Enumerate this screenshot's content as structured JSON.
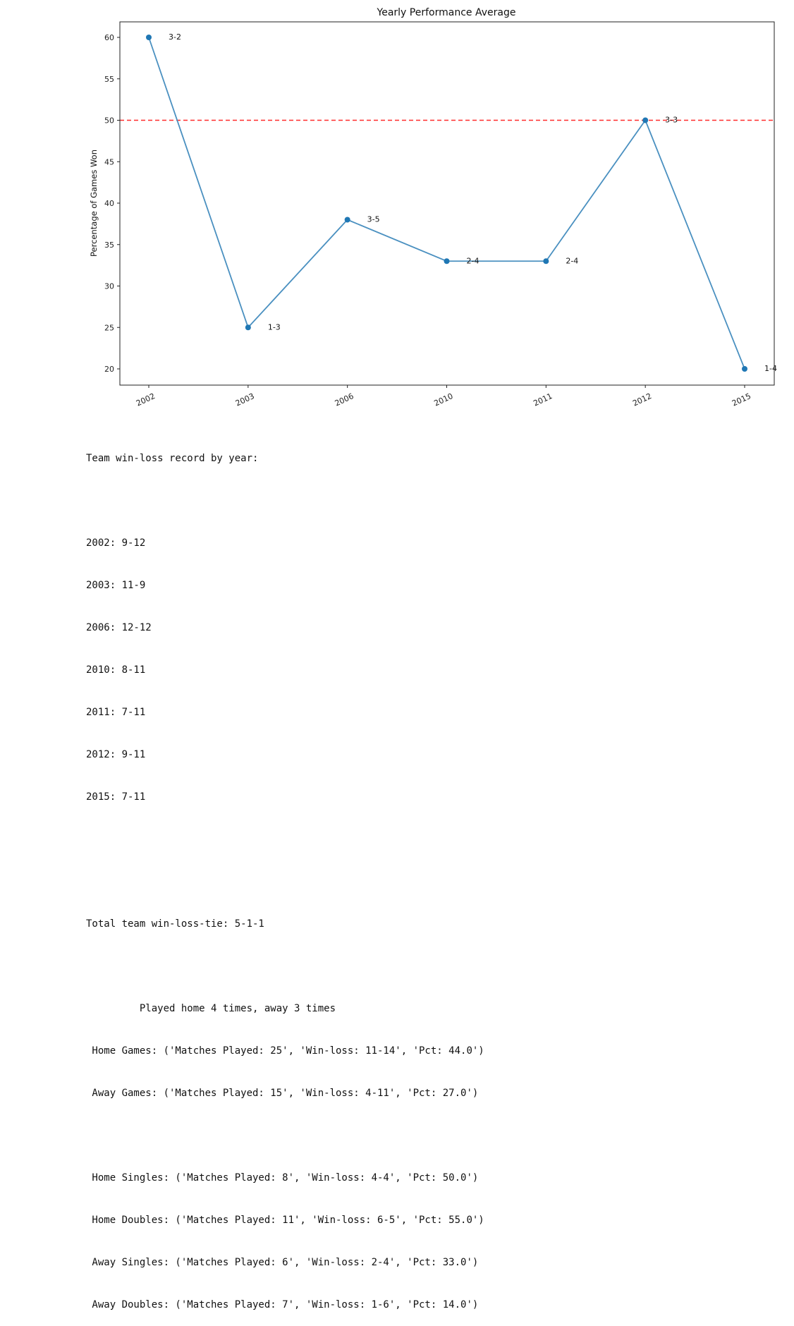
{
  "chart_data": {
    "type": "line",
    "title": "Yearly Performance Average",
    "xlabel": "",
    "ylabel": "Percentage of Games Won",
    "categories": [
      "2002",
      "2003",
      "2006",
      "2010",
      "2011",
      "2012",
      "2015"
    ],
    "series": [
      {
        "values": [
          60,
          25,
          38,
          33,
          33,
          50,
          20
        ],
        "color": "#4a90c0",
        "marker": "circle"
      }
    ],
    "annotations": [
      "3-2",
      "1-3",
      "3-5",
      "2-4",
      "2-4",
      "3-3",
      "1-4"
    ],
    "reference_line": {
      "y": 50,
      "color": "#ff2b2b",
      "style": "dashed"
    },
    "ylim": [
      18,
      62
    ],
    "yticks": [
      20,
      25,
      30,
      35,
      40,
      45,
      50,
      55,
      60
    ],
    "grid": false
  },
  "output": {
    "record_heading": "Team win-loss record by year:",
    "yearly_records": [
      "2002: 9-12",
      "2003: 11-9",
      "2006: 12-12",
      "2010: 8-11",
      "2011: 7-11",
      "2012: 9-11",
      "2015: 7-11"
    ],
    "total": "Total team win-loss-tie: 5-1-1",
    "played": "         Played home 4 times, away 3 times",
    "home_away": [
      " Home Games: ('Matches Played: 25', 'Win-loss: 11-14', 'Pct: 44.0')",
      " Away Games: ('Matches Played: 15', 'Win-loss: 4-11', 'Pct: 27.0')"
    ],
    "breakdown": [
      " Home Singles: ('Matches Played: 8', 'Win-loss: 4-4', 'Pct: 50.0')",
      " Home Doubles: ('Matches Played: 11', 'Win-loss: 6-5', 'Pct: 55.0')",
      " Away Singles: ('Matches Played: 6', 'Win-loss: 2-4', 'Pct: 33.0')",
      " Away Doubles: ('Matches Played: 7', 'Win-loss: 1-6', 'Pct: 14.0')"
    ]
  }
}
